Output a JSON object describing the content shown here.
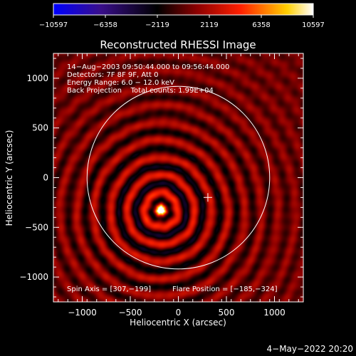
{
  "chart_data": {
    "type": "heatmap",
    "title": "Reconstructed RHESSI Image",
    "xlabel": "Heliocentric X (arcsec)",
    "ylabel": "Heliocentric Y (arcsec)",
    "xlim": [
      -1300,
      1300
    ],
    "ylim": [
      -1250,
      1250
    ],
    "x_ticks": [
      -1000,
      -500,
      0,
      500,
      1000
    ],
    "y_ticks": [
      1000,
      500,
      0,
      -500,
      -1000
    ],
    "x_tick_labels": [
      "−1000",
      "−500",
      "0",
      "500",
      "1000"
    ],
    "y_tick_labels": [
      "1000",
      "500",
      "0",
      "−500",
      "−1000"
    ],
    "colorbar": {
      "range": [
        -10597,
        10597
      ],
      "ticks": [
        -10597,
        -6358,
        -2119,
        2119,
        6358,
        10597
      ],
      "tick_labels": [
        "−10597",
        "−6358",
        "−2119",
        "2119",
        "6358",
        "10597"
      ],
      "colormap": [
        "#0000ff",
        "#3a0f8c",
        "#000000",
        "#8b0000",
        "#ff2000",
        "#ffd000",
        "#ffffff"
      ]
    },
    "annotations": [
      "14−Aug−2003 09:50:44.000 to 09:56:44.000",
      "Detectors: 7F 8F 9F, Att 0",
      "Energy Range: 6.0 − 12.0 keV",
      "Back Projection    Total counts: 1.99E+04"
    ],
    "spin_axis_label": "Spin Axis = [307,−199]",
    "flare_position_label": "Flare Position = [−185,−324]",
    "spin_axis": [
      307,
      -199
    ],
    "flare_position": [
      -185,
      -324
    ],
    "solar_limb_center": [
      0,
      0
    ],
    "solar_limb_radius": 950,
    "grid": false
  },
  "footer": {
    "date": "4−May−2022 20:20"
  }
}
